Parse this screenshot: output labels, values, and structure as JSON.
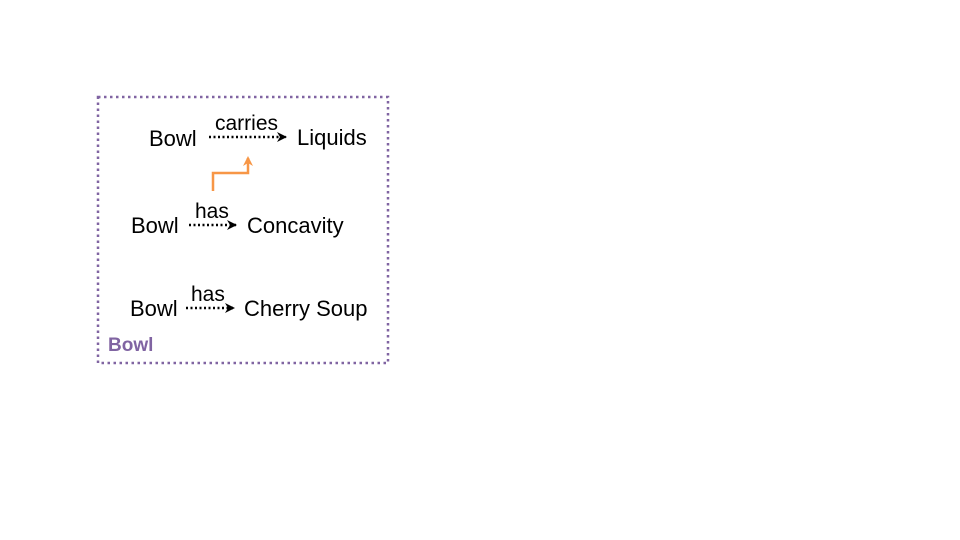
{
  "diagram": {
    "group": {
      "label": "Bowl",
      "border_color": "#8064A2",
      "label_color": "#8064A2"
    },
    "triples": [
      {
        "subject": "Bowl",
        "relation": "carries",
        "object": "Liquids"
      },
      {
        "subject": "Bowl",
        "relation": "has",
        "object": "Concavity"
      },
      {
        "subject": "Bowl",
        "relation": "has",
        "object": "Cherry Soup"
      }
    ],
    "link_color": "#F79646",
    "edge_color": "#000000"
  }
}
